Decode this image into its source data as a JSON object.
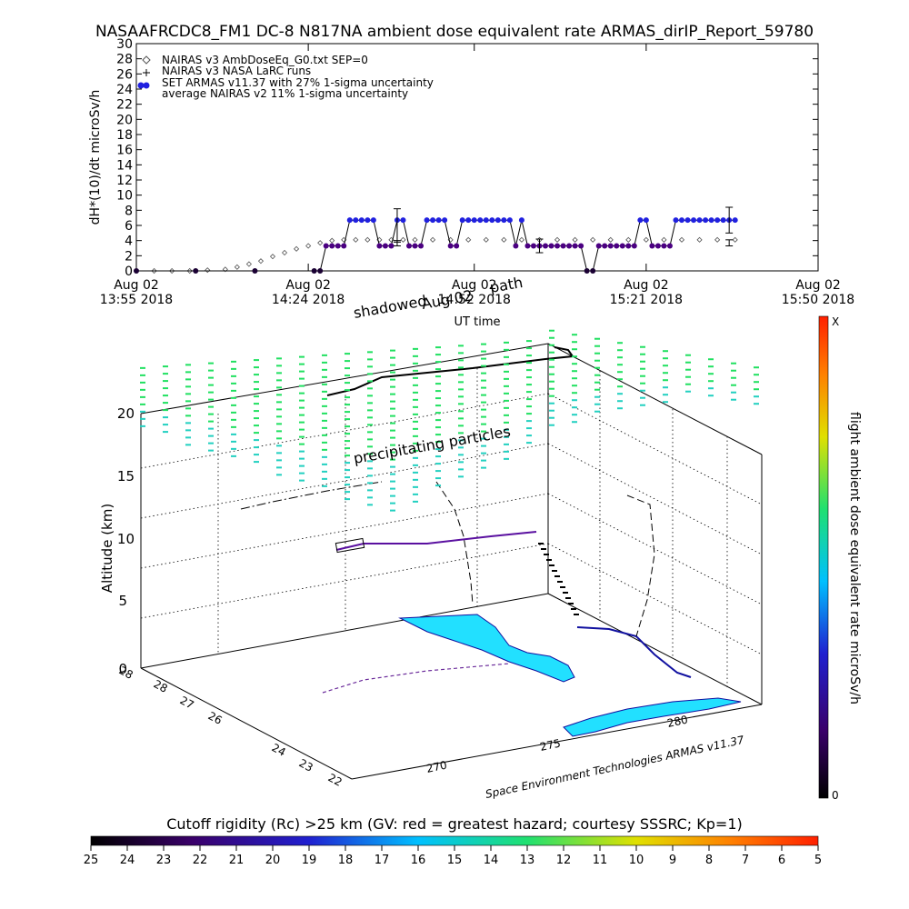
{
  "title": "NASAAFRCDC8_FM1 DC-8   N817NA ambient dose equivalent rate ARMAS_dirIP_Report_59780",
  "colors": {
    "series_armas": "#2020e0",
    "series_armas_low": "#4b0082",
    "series_nairas_v3": "#555555",
    "accent_cyan": "#22e0ff",
    "green_markers": "#20e060",
    "colorbar_stops": [
      "#000000",
      "#3a006a",
      "#2020d0",
      "#00c0ff",
      "#20e070",
      "#e0e000",
      "#ff8000",
      "#ff2000"
    ]
  },
  "chart_data": [
    {
      "type": "line",
      "ylabel": "dH*(10)/dt microSv/h",
      "xlabel": "UT time",
      "ylim": [
        0,
        30
      ],
      "yticks": [
        "0",
        "2",
        "4",
        "6",
        "8",
        "10",
        "12",
        "14",
        "16",
        "18",
        "20",
        "22",
        "24",
        "26",
        "28",
        "30"
      ],
      "xticks": [
        {
          "t": 0,
          "line1": "Aug 02",
          "line2": "13:55 2018"
        },
        {
          "t": 29,
          "line1": "Aug 02",
          "line2": "14:24 2018"
        },
        {
          "t": 57,
          "line1": "Aug 02",
          "line2": "14:52 2018"
        },
        {
          "t": 86,
          "line1": "Aug 02",
          "line2": "15:21 2018"
        },
        {
          "t": 115,
          "line1": "Aug 02",
          "line2": "15:50 2018"
        }
      ],
      "legend": [
        "NAIRAS v3 AmbDoseEq_G0.txt SEP=0",
        "NAIRAS v3 NASA LaRC runs",
        "SET ARMAS v11.37 with 27% 1-sigma uncertainty",
        "average NAIRAS v2 11% 1-sigma uncertainty"
      ],
      "legend_position": "top-left",
      "series": [
        {
          "name": "NAIRAS v3 AmbDoseEq_G0.txt SEP=0",
          "x": [
            0,
            3,
            6,
            9,
            12,
            15,
            17,
            19,
            21,
            23,
            25,
            27,
            29,
            31,
            33,
            35,
            37,
            39,
            41,
            43,
            45,
            47,
            50,
            53,
            56,
            59,
            62,
            65,
            68,
            71,
            74,
            77,
            80,
            83,
            86,
            89,
            92,
            95,
            98,
            101
          ],
          "y": [
            0,
            0,
            0,
            0,
            0.1,
            0.2,
            0.5,
            0.9,
            1.3,
            1.9,
            2.4,
            2.9,
            3.3,
            3.7,
            4.0,
            4.1,
            4.1,
            4.1,
            4.1,
            4.1,
            4.1,
            4.1,
            4.1,
            4.1,
            4.1,
            4.1,
            4.1,
            4.1,
            4.1,
            4.1,
            4.1,
            4.1,
            4.1,
            4.1,
            4.1,
            4.1,
            4.1,
            4.1,
            4.1,
            4.1
          ]
        },
        {
          "name": "SET ARMAS v11.37 with 27% 1-sigma uncertainty",
          "x": [
            0,
            10,
            20,
            30,
            31,
            32,
            33,
            34,
            35,
            36,
            37,
            38,
            39,
            40,
            41,
            42,
            43,
            44,
            45,
            46,
            47,
            48,
            49,
            50,
            51,
            52,
            53,
            54,
            55,
            56,
            57,
            58,
            59,
            60,
            61,
            62,
            63,
            64,
            65,
            66,
            67,
            68,
            69,
            70,
            71,
            72,
            73,
            74,
            75,
            76,
            77,
            78,
            79,
            80,
            81,
            82,
            83,
            84,
            85,
            86,
            87,
            88,
            89,
            90,
            91,
            92,
            93,
            94,
            95,
            96,
            97,
            98,
            99,
            100,
            101
          ],
          "y": [
            0,
            0,
            0,
            0,
            0,
            3.3,
            3.3,
            3.3,
            3.3,
            6.7,
            6.7,
            6.7,
            6.7,
            6.7,
            3.3,
            3.3,
            3.3,
            6.7,
            6.7,
            3.3,
            3.3,
            3.3,
            6.7,
            6.7,
            6.7,
            6.7,
            3.3,
            3.3,
            6.7,
            6.7,
            6.7,
            6.7,
            6.7,
            6.7,
            6.7,
            6.7,
            6.7,
            3.3,
            6.7,
            3.3,
            3.3,
            3.3,
            3.3,
            3.3,
            3.3,
            3.3,
            3.3,
            3.3,
            3.3,
            0,
            0,
            3.3,
            3.3,
            3.3,
            3.3,
            3.3,
            3.3,
            3.3,
            6.7,
            6.7,
            3.3,
            3.3,
            3.3,
            3.3,
            6.7,
            6.7,
            6.7,
            6.7,
            6.7,
            6.7,
            6.7,
            6.7,
            6.7,
            6.7,
            6.7
          ]
        }
      ],
      "error_bars": [
        {
          "x": 44,
          "center": 6.0,
          "low": 3.8,
          "high": 8.2
        },
        {
          "x": 44,
          "center": 3.6,
          "low": 3.3,
          "high": 4.0
        },
        {
          "x": 68,
          "center": 3.3,
          "low": 2.4,
          "high": 4.2
        },
        {
          "x": 100,
          "center": 6.7,
          "low": 5.0,
          "high": 8.4
        },
        {
          "x": 100,
          "center": 3.7,
          "low": 3.3,
          "high": 4.1
        }
      ]
    },
    {
      "type": "scatter",
      "zlabel": "Altitude (km)",
      "zticks": [
        "0",
        "5",
        "10",
        "15",
        "20"
      ],
      "lat_ticks": [
        "28",
        "28",
        "27",
        "26",
        "24",
        "23",
        "22"
      ],
      "lon_ticks": [
        "270",
        "275",
        "280"
      ],
      "annotations": [
        "shadowed",
        "Aug 02",
        "path",
        "precipitating particles",
        "Space Environment Technologies ARMAS v11.37"
      ]
    }
  ],
  "colorbar_right": {
    "label": "flight ambient dose equivalent rate microSv/h",
    "top": "X",
    "bottom": "0"
  },
  "colorbar_bottom": {
    "label": "Cutoff rigidity (Rc) >25 km (GV: red = greatest hazard; courtesy SSSRC; Kp=1)",
    "ticks": [
      "25",
      "24",
      "23",
      "22",
      "21",
      "20",
      "19",
      "18",
      "17",
      "16",
      "15",
      "14",
      "13",
      "12",
      "11",
      "10",
      "9",
      "8",
      "7",
      "6",
      "5"
    ]
  }
}
